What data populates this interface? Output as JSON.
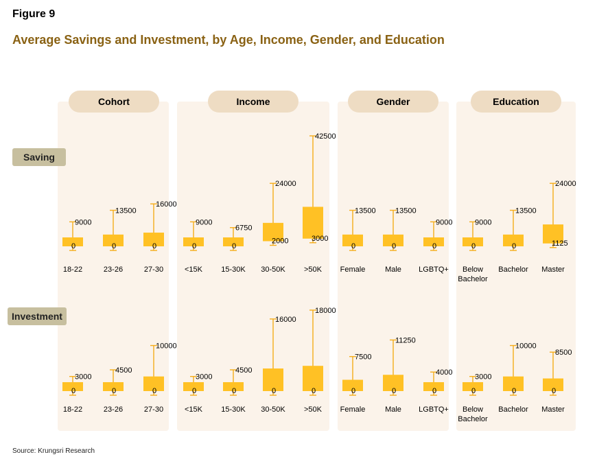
{
  "figure_label": "Figure 9",
  "title": "Average Savings and Investment, by Age, Income, Gender, and Education",
  "source": "Source: Krungsri Research",
  "chart_data": {
    "type": "box",
    "groups": [
      {
        "name": "Cohort",
        "categories": [
          "18-22",
          "23-26",
          "27-30"
        ]
      },
      {
        "name": "Income",
        "categories": [
          "<15K",
          "15-30K",
          "30-50K",
          ">50K"
        ]
      },
      {
        "name": "Gender",
        "categories": [
          "Female",
          "Male",
          "LGBTQ+"
        ]
      },
      {
        "name": "Education",
        "categories": [
          "Below\nBachelor",
          "Bachelor",
          "Master"
        ]
      }
    ],
    "rows": [
      {
        "name": "Saving",
        "ylim": [
          0,
          42500
        ],
        "groups": [
          [
            {
              "min": 0,
              "max": 9000
            },
            {
              "min": 0,
              "max": 13500
            },
            {
              "min": 0,
              "max": 16000
            }
          ],
          [
            {
              "min": 0,
              "max": 9000
            },
            {
              "min": 0,
              "max": 6750
            },
            {
              "min": 2000,
              "max": 24000
            },
            {
              "min": 3000,
              "max": 42500
            }
          ],
          [
            {
              "min": 0,
              "max": 13500
            },
            {
              "min": 0,
              "max": 13500
            },
            {
              "min": 0,
              "max": 9000
            }
          ],
          [
            {
              "min": 0,
              "max": 9000
            },
            {
              "min": 0,
              "max": 13500
            },
            {
              "min": 1125,
              "max": 24000
            }
          ]
        ]
      },
      {
        "name": "Investment",
        "ylim": [
          0,
          18000
        ],
        "groups": [
          [
            {
              "min": 0,
              "max": 3000
            },
            {
              "min": 0,
              "max": 4500
            },
            {
              "min": 0,
              "max": 10000
            }
          ],
          [
            {
              "min": 0,
              "max": 3000
            },
            {
              "min": 0,
              "max": 4500
            },
            {
              "min": 0,
              "max": 16000
            },
            {
              "min": 0,
              "max": 18000
            }
          ],
          [
            {
              "min": 0,
              "max": 7500
            },
            {
              "min": 0,
              "max": 11250
            },
            {
              "min": 0,
              "max": 4000
            }
          ],
          [
            {
              "min": 0,
              "max": 3000
            },
            {
              "min": 0,
              "max": 10000
            },
            {
              "min": 0,
              "max": 8500
            }
          ]
        ]
      }
    ]
  },
  "colors": {
    "box": "#ffc125",
    "whisker": "#f5ad1b",
    "title": "#8a6214",
    "panel": "#fbf3ea",
    "pill": "#eedcc3",
    "row_tag": "#c7bf9f"
  }
}
